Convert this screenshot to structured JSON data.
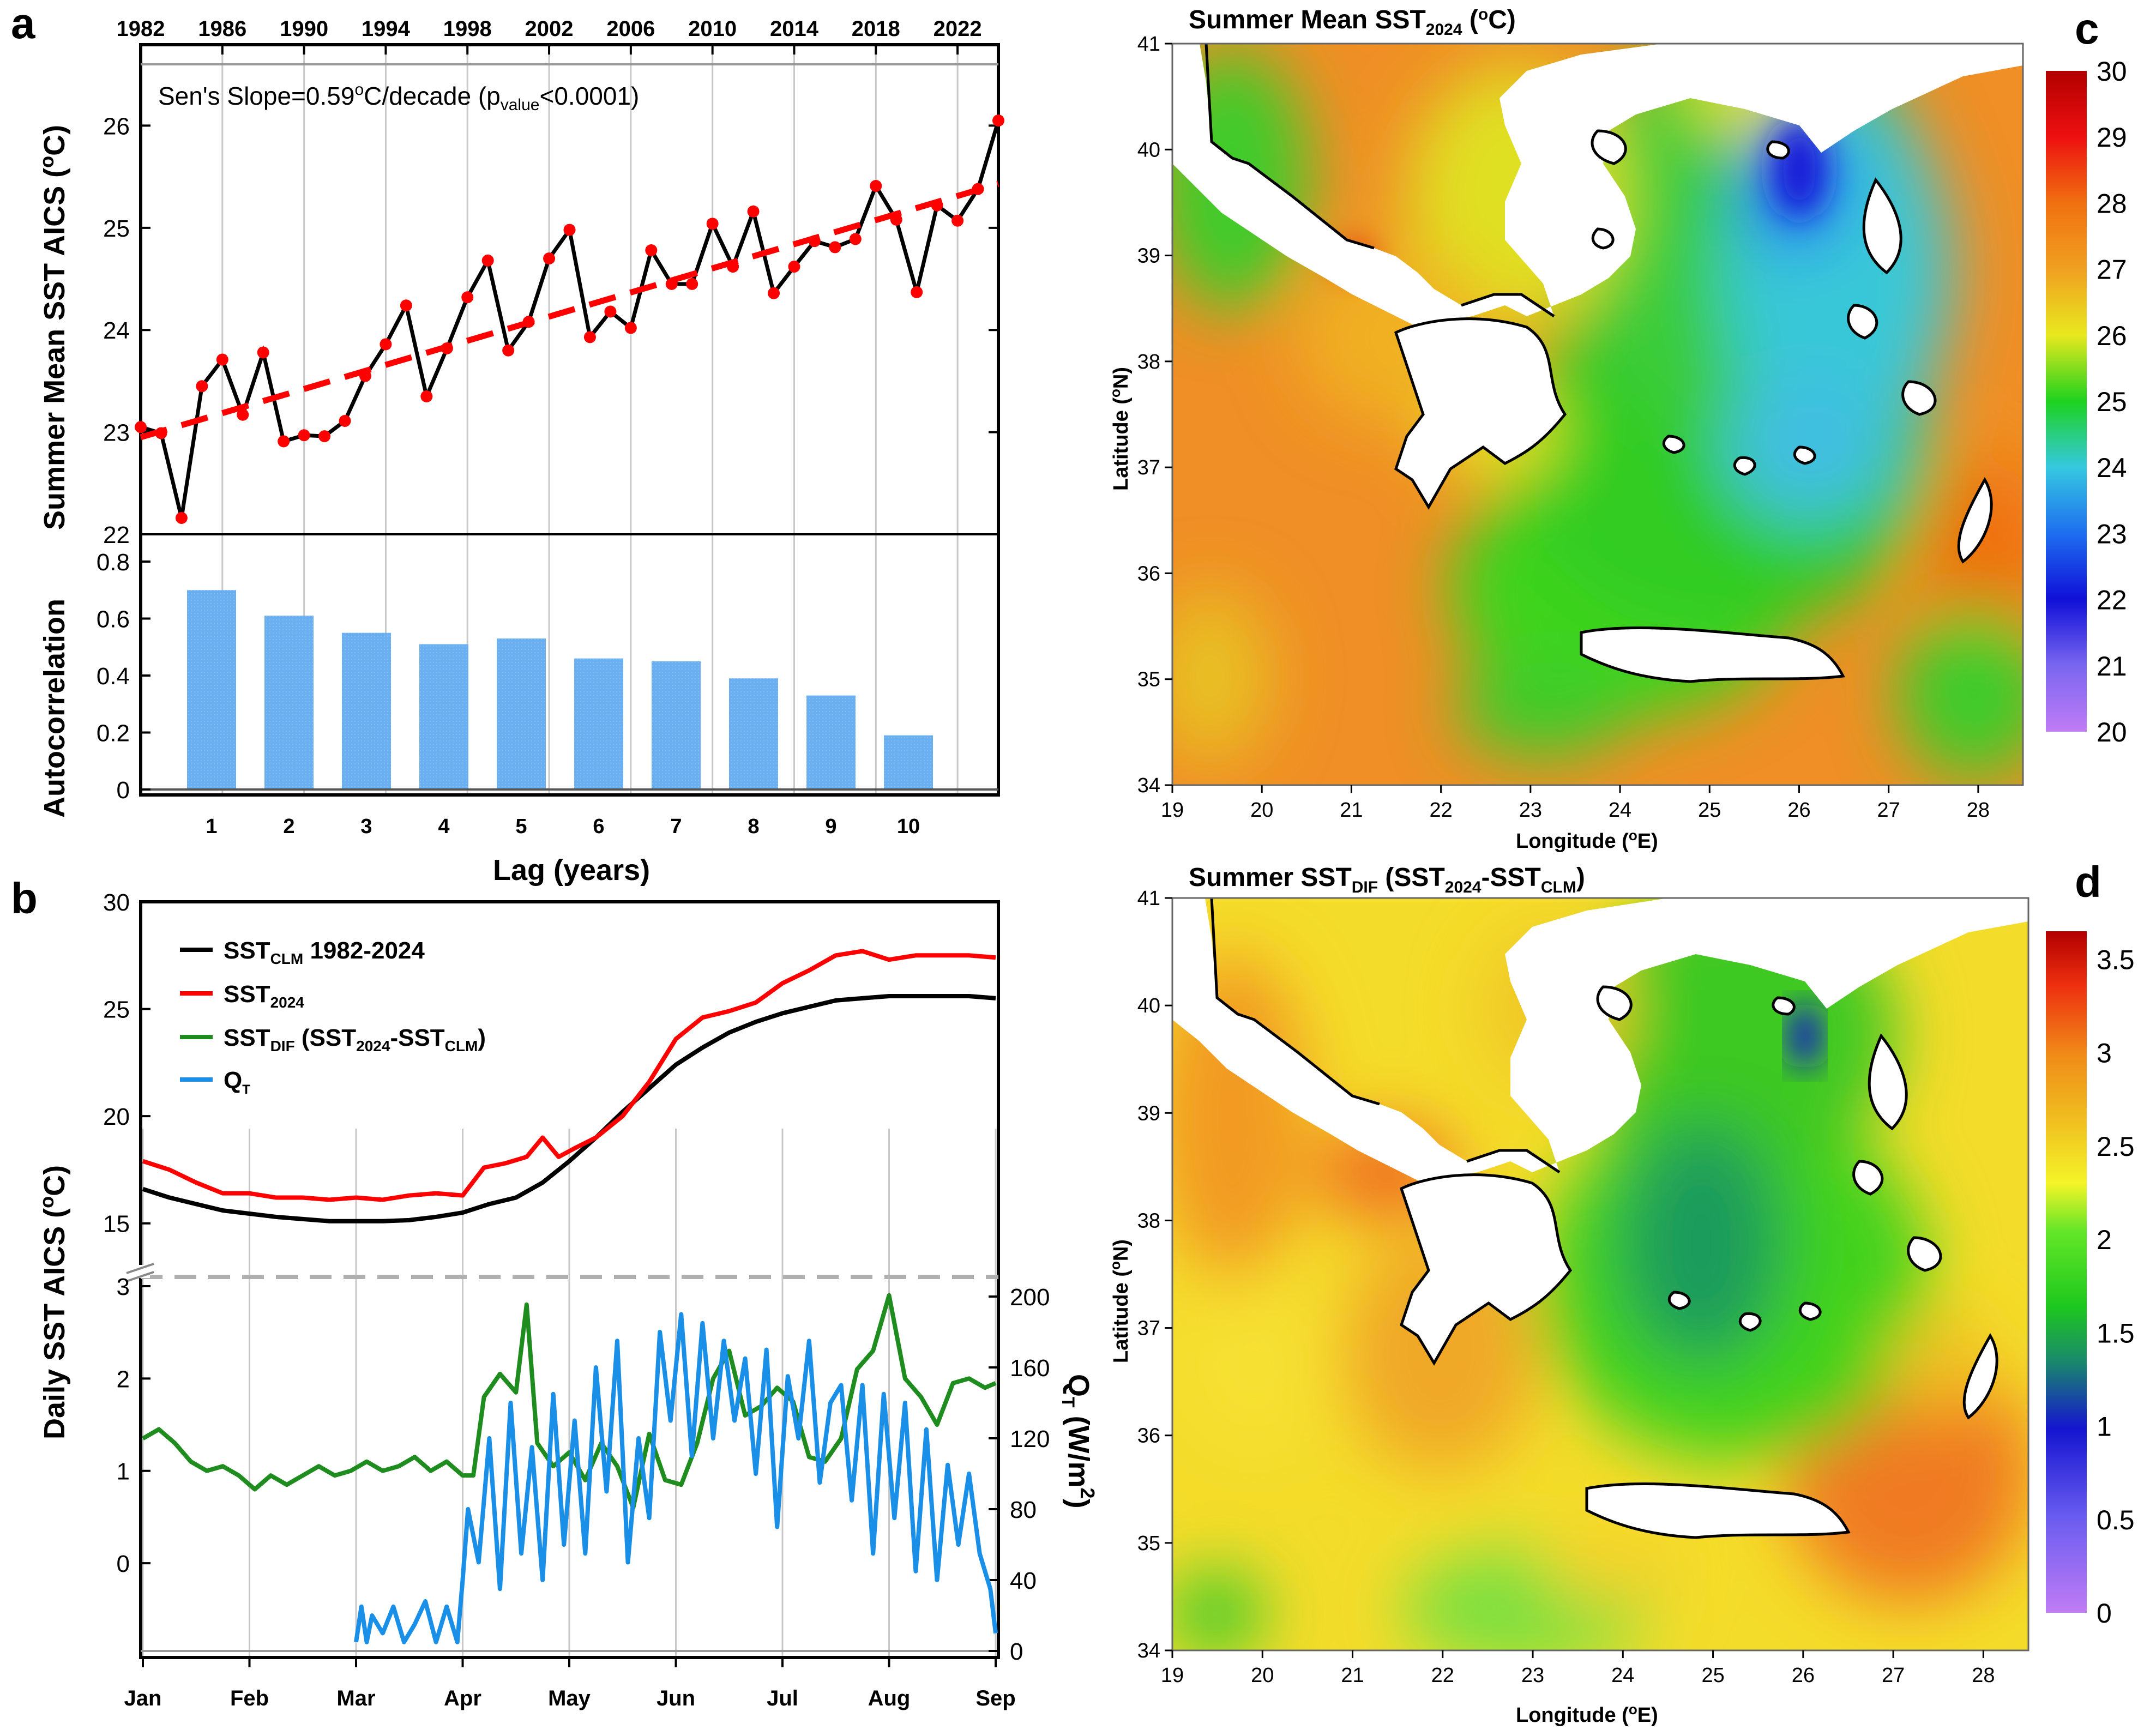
{
  "panels": {
    "a": "a",
    "b": "b",
    "c": "c",
    "d": "d"
  },
  "chart_data": [
    {
      "panel": "a-top",
      "type": "line",
      "title": "",
      "ylabel": "Summer Mean SST AICS (°C)",
      "ylabel_parts": [
        "Summer Mean SST AICS (",
        "o",
        "C)"
      ],
      "top_axis_ticks": [
        "1982",
        "1986",
        "1990",
        "1994",
        "1998",
        "2002",
        "2006",
        "2010",
        "2014",
        "2018",
        "2022"
      ],
      "top_axis_values": [
        1982,
        1986,
        1990,
        1994,
        1998,
        2002,
        2006,
        2010,
        2014,
        2018,
        2022
      ],
      "xlim": [
        1982,
        2024
      ],
      "ylim": [
        22,
        26.6
      ],
      "y_ticks": [
        22,
        23,
        24,
        25,
        26
      ],
      "annotation_parts": {
        "a": "Sen's Slope=0.59",
        "b": "o",
        "c": "C/decade (p",
        "d": "value",
        "e": "<0.0001)"
      },
      "annotation": "Sen's Slope=0.59°C/decade (pvalue<0.0001)",
      "series": [
        {
          "name": "Summer Mean SST",
          "color": "#000000",
          "marker_color": "#ff0000",
          "x": [
            1982,
            1983,
            1984,
            1985,
            1986,
            1987,
            1988,
            1989,
            1990,
            1991,
            1992,
            1993,
            1994,
            1995,
            1996,
            1997,
            1998,
            1999,
            2000,
            2001,
            2002,
            2003,
            2004,
            2005,
            2006,
            2007,
            2008,
            2009,
            2010,
            2011,
            2012,
            2013,
            2014,
            2015,
            2016,
            2017,
            2018,
            2019,
            2020,
            2021,
            2022,
            2023,
            2024
          ],
          "values": [
            23.05,
            22.99,
            22.16,
            23.45,
            23.71,
            23.17,
            23.78,
            22.91,
            22.97,
            22.96,
            23.11,
            23.55,
            23.86,
            24.24,
            23.35,
            23.82,
            24.32,
            24.68,
            23.8,
            24.08,
            24.7,
            24.98,
            23.93,
            24.18,
            24.02,
            24.78,
            24.45,
            24.45,
            25.04,
            24.62,
            25.16,
            24.36,
            24.62,
            24.87,
            24.81,
            24.89,
            25.41,
            25.08,
            24.37,
            25.22,
            25.07,
            25.38,
            26.05
          ]
        },
        {
          "name": "Sen's slope trend",
          "color": "#ff0000",
          "dashed": true,
          "x": [
            1982,
            2024
          ],
          "values": [
            22.95,
            25.43
          ]
        }
      ]
    },
    {
      "panel": "a-bottom",
      "type": "bar",
      "xlabel": "Lag (years)",
      "ylabel": "Autocorrelation",
      "categories": [
        "1",
        "2",
        "3",
        "4",
        "5",
        "6",
        "7",
        "8",
        "9",
        "10"
      ],
      "values": [
        0.7,
        0.61,
        0.55,
        0.51,
        0.53,
        0.46,
        0.45,
        0.39,
        0.33,
        0.19
      ],
      "ylim": [
        0,
        0.8
      ],
      "y_ticks": [
        "0",
        "0.2",
        "0.4",
        "0.6",
        "0.8"
      ],
      "color": "#6aaff0"
    },
    {
      "panel": "b",
      "type": "line",
      "ylabel": "Daily SST AICS (°C)",
      "ylabel_parts": [
        "Daily SST AICS (",
        "o",
        "C)"
      ],
      "y2label": "QT (W/m2)",
      "y2label_parts": [
        "Q",
        "T",
        " (W/m",
        "2",
        ")"
      ],
      "x_ticks": [
        "Jan",
        "Feb",
        "Mar",
        "Apr",
        "May",
        "Jun",
        "Jul",
        "Aug",
        "Sep"
      ],
      "upper_y_ticks": [
        "15",
        "20",
        "25",
        "30"
      ],
      "upper_ylim": [
        12.5,
        30
      ],
      "lower_y_ticks": [
        "3",
        "2",
        "1",
        "0"
      ],
      "lower_ylim": [
        -0.95,
        3.1
      ],
      "right_y_ticks": [
        "200",
        "160",
        "120",
        "80",
        "40",
        "0"
      ],
      "right_ylim": [
        0,
        200
      ],
      "legend": [
        {
          "label_main": "SST",
          "label_sub": "CLM",
          "label_rest": " 1982-2024",
          "color": "#000000"
        },
        {
          "label_main": "SST",
          "label_sub": "2024",
          "label_rest": "",
          "color": "#ff0000"
        },
        {
          "label_main": "SST",
          "label_sub": "DIF",
          "label_rest": " (SST",
          "label_sub2": "2024",
          "label_rest2": "-SST",
          "label_sub3": "CLM",
          "label_rest3": ")",
          "color": "#1e8c1e"
        },
        {
          "label_main": "Q",
          "label_sub": "T",
          "label_rest": "",
          "color": "#1a8fe8"
        }
      ],
      "series": [
        {
          "name": "SST_CLM 1982-2024",
          "color": "#000000",
          "axis": "upper",
          "x": [
            0,
            0.25,
            0.5,
            0.75,
            1,
            1.25,
            1.5,
            1.75,
            2,
            2.25,
            2.5,
            2.75,
            3,
            3.25,
            3.5,
            3.75,
            4,
            4.25,
            4.5,
            4.75,
            5,
            5.25,
            5.5,
            5.75,
            6,
            6.25,
            6.5,
            6.75,
            7,
            7.25,
            7.5,
            7.75,
            8
          ],
          "values": [
            16.6,
            16.2,
            15.9,
            15.6,
            15.45,
            15.3,
            15.2,
            15.1,
            15.1,
            15.1,
            15.15,
            15.3,
            15.5,
            15.9,
            16.2,
            16.9,
            17.9,
            19.0,
            20.2,
            21.3,
            22.4,
            23.2,
            23.9,
            24.4,
            24.8,
            25.1,
            25.4,
            25.5,
            25.6,
            25.6,
            25.6,
            25.6,
            25.5
          ]
        },
        {
          "name": "SST_2024",
          "color": "#ff0000",
          "axis": "upper",
          "x": [
            0,
            0.25,
            0.5,
            0.75,
            1,
            1.25,
            1.5,
            1.75,
            2,
            2.25,
            2.5,
            2.75,
            3,
            3.2,
            3.4,
            3.6,
            3.75,
            3.9,
            4.05,
            4.25,
            4.5,
            4.75,
            5,
            5.25,
            5.5,
            5.75,
            6,
            6.25,
            6.5,
            6.75,
            7,
            7.25,
            7.5,
            7.75,
            8
          ],
          "values": [
            17.9,
            17.5,
            16.9,
            16.4,
            16.4,
            16.2,
            16.2,
            16.1,
            16.2,
            16.1,
            16.3,
            16.4,
            16.3,
            17.6,
            17.8,
            18.1,
            19.0,
            18.1,
            18.5,
            19.0,
            20.0,
            21.6,
            23.6,
            24.6,
            24.9,
            25.3,
            26.2,
            26.8,
            27.5,
            27.7,
            27.3,
            27.5,
            27.5,
            27.5,
            27.4
          ]
        },
        {
          "name": "SST_DIF (SST2024-SST_CLM)",
          "color": "#1e8c1e",
          "axis": "lower",
          "x": [
            0,
            0.15,
            0.3,
            0.45,
            0.6,
            0.75,
            0.9,
            1.05,
            1.2,
            1.35,
            1.5,
            1.65,
            1.8,
            1.95,
            2.1,
            2.25,
            2.4,
            2.55,
            2.7,
            2.85,
            3.0,
            3.1,
            3.2,
            3.35,
            3.5,
            3.6,
            3.7,
            3.85,
            4.0,
            4.15,
            4.3,
            4.45,
            4.6,
            4.75,
            4.9,
            5.05,
            5.2,
            5.35,
            5.5,
            5.65,
            5.8,
            5.95,
            6.1,
            6.25,
            6.4,
            6.55,
            6.7,
            6.85,
            7.0,
            7.15,
            7.3,
            7.45,
            7.6,
            7.75,
            7.9,
            8
          ],
          "values": [
            1.35,
            1.45,
            1.3,
            1.1,
            1.0,
            1.05,
            0.95,
            0.8,
            0.95,
            0.85,
            0.95,
            1.05,
            0.95,
            1.0,
            1.1,
            1.0,
            1.05,
            1.15,
            1.0,
            1.1,
            0.95,
            0.95,
            1.8,
            2.05,
            1.85,
            2.8,
            1.3,
            1.05,
            1.2,
            0.9,
            1.3,
            1.05,
            0.6,
            1.4,
            0.9,
            0.85,
            1.3,
            2.0,
            2.3,
            1.6,
            1.7,
            1.9,
            1.75,
            1.15,
            1.1,
            1.35,
            2.1,
            2.3,
            2.9,
            2.0,
            1.8,
            1.5,
            1.95,
            2.0,
            1.9,
            1.95
          ]
        },
        {
          "name": "Q_T",
          "color": "#1a8fe8",
          "axis": "right",
          "x": [
            2.0,
            2.05,
            2.1,
            2.15,
            2.25,
            2.35,
            2.45,
            2.55,
            2.65,
            2.75,
            2.85,
            2.95,
            3.0,
            3.05,
            3.15,
            3.25,
            3.35,
            3.45,
            3.55,
            3.65,
            3.75,
            3.85,
            3.95,
            4.05,
            4.15,
            4.25,
            4.35,
            4.45,
            4.55,
            4.65,
            4.75,
            4.85,
            4.95,
            5.05,
            5.15,
            5.25,
            5.35,
            5.45,
            5.55,
            5.65,
            5.75,
            5.85,
            5.95,
            6.05,
            6.15,
            6.25,
            6.35,
            6.45,
            6.55,
            6.65,
            6.75,
            6.85,
            6.95,
            7.05,
            7.15,
            7.25,
            7.35,
            7.45,
            7.55,
            7.65,
            7.75,
            7.85,
            7.95,
            8.0
          ],
          "values": [
            5,
            25,
            5,
            20,
            10,
            25,
            5,
            15,
            28,
            5,
            25,
            5,
            40,
            80,
            50,
            120,
            35,
            140,
            55,
            115,
            40,
            145,
            60,
            130,
            55,
            160,
            90,
            175,
            50,
            120,
            75,
            180,
            130,
            190,
            110,
            185,
            120,
            175,
            130,
            165,
            100,
            170,
            70,
            155,
            120,
            175,
            95,
            140,
            150,
            85,
            150,
            55,
            145,
            75,
            140,
            45,
            125,
            40,
            105,
            60,
            100,
            55,
            35,
            10
          ]
        }
      ]
    },
    {
      "panel": "c",
      "type": "heatmap",
      "title_main": "Summer Mean SST",
      "title_sub": "2024",
      "title_rest": " (°C)",
      "title_rest_parts": [
        " (",
        "o",
        "C)"
      ],
      "xlabel_parts": [
        "Longitude (",
        "o",
        "E)"
      ],
      "ylabel_parts": [
        "Latitude (",
        "o",
        "N)"
      ],
      "xlabel": "Longitude (°E)",
      "ylabel": "Latitude (°N)",
      "x_ticks": [
        "19",
        "20",
        "21",
        "22",
        "23",
        "24",
        "25",
        "26",
        "27",
        "28"
      ],
      "y_ticks": [
        "34",
        "35",
        "36",
        "37",
        "38",
        "39",
        "40",
        "41"
      ],
      "colorbar_ticks": [
        "20",
        "21",
        "22",
        "23",
        "24",
        "25",
        "26",
        "27",
        "28",
        "29",
        "30"
      ],
      "colorbar_range": [
        20,
        30
      ]
    },
    {
      "panel": "d",
      "type": "heatmap",
      "title_main": "Summer SST",
      "title_sub": "DIF",
      "title_rest": " (SST",
      "title_sub2": "2024",
      "title_rest2": "-SST",
      "title_sub3": "CLM",
      "title_rest3": ")",
      "xlabel_parts": [
        "Longitude (",
        "o",
        "E)"
      ],
      "ylabel_parts": [
        "Latitude (",
        "o",
        "N)"
      ],
      "xlabel": "Longitude (°E)",
      "ylabel": "Latitude (°N)",
      "x_ticks": [
        "19",
        "20",
        "21",
        "22",
        "23",
        "24",
        "25",
        "26",
        "27",
        "28"
      ],
      "y_ticks": [
        "34",
        "35",
        "36",
        "37",
        "38",
        "39",
        "40",
        "41"
      ],
      "colorbar_ticks": [
        "0",
        "0.5",
        "1",
        "1.5",
        "2",
        "2.5",
        "3",
        "3.5"
      ],
      "colorbar_range": [
        0,
        3.65
      ]
    }
  ]
}
